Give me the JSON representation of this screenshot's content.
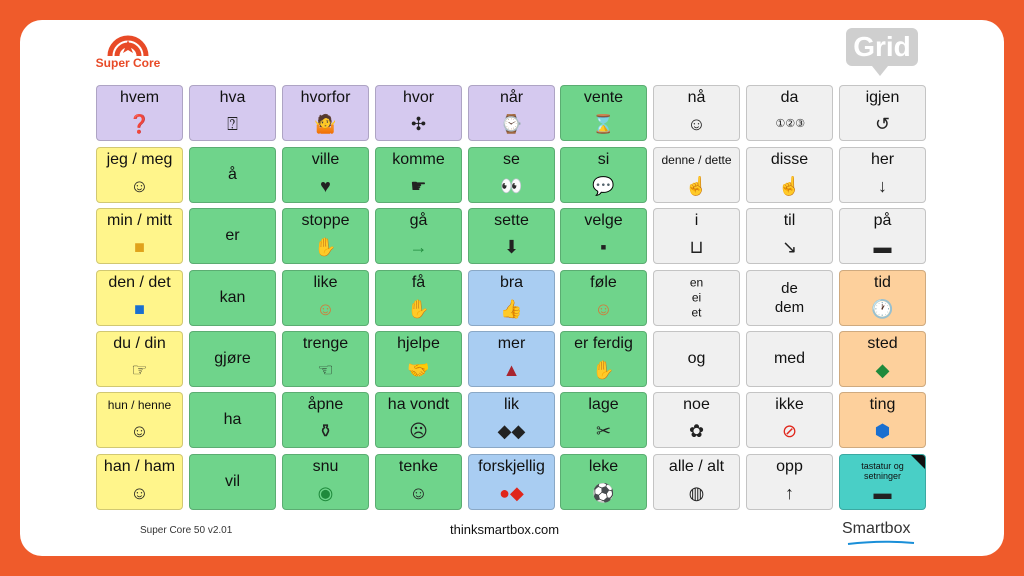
{
  "brand": {
    "logo_text": "Super Core",
    "badge": "Grid"
  },
  "footer": {
    "version": "Super Core 50 v2.01",
    "url": "thinksmartbox.com",
    "company": "Smartbox"
  },
  "colors": {
    "frame": "#ef5b2b",
    "purple": "#d5c9ef",
    "green": "#6fd48b",
    "gray": "#f0f0f0",
    "yellow": "#fff58b",
    "blue": "#a9cdf2",
    "orange": "#fdd09c",
    "teal": "#49cfc6"
  },
  "rows": [
    [
      {
        "label": "hvem",
        "color": "purple",
        "icon": "question-face-icon"
      },
      {
        "label": "hva",
        "color": "purple",
        "icon": "question-box-icon"
      },
      {
        "label": "hvorfor",
        "color": "purple",
        "icon": "shrug-question-icon"
      },
      {
        "label": "hvor",
        "color": "purple",
        "icon": "directions-icon"
      },
      {
        "label": "når",
        "color": "purple",
        "icon": "clock-question-icon"
      },
      {
        "label": "vente",
        "color": "green",
        "icon": "waiting-person-icon"
      },
      {
        "label": "nå",
        "color": "gray",
        "icon": "now-person-icon"
      },
      {
        "label": "da",
        "color": "gray",
        "icon": "sequence-icon"
      },
      {
        "label": "igjen",
        "color": "gray",
        "icon": "again-arrows-icon"
      }
    ],
    [
      {
        "label": "jeg / meg",
        "color": "yellow",
        "icon": "me-person-icon"
      },
      {
        "label": "å",
        "color": "green",
        "icon": ""
      },
      {
        "label": "ville",
        "color": "green",
        "icon": "want-icon"
      },
      {
        "label": "komme",
        "color": "green",
        "icon": "come-hand-icon"
      },
      {
        "label": "se",
        "color": "green",
        "icon": "eyes-icon"
      },
      {
        "label": "si",
        "color": "green",
        "icon": "speak-icon"
      },
      {
        "label": "denne / dette",
        "color": "gray",
        "icon": "this-point-icon"
      },
      {
        "label": "disse",
        "color": "gray",
        "icon": "these-point-icon"
      },
      {
        "label": "her",
        "color": "gray",
        "icon": "here-arrow-icon"
      }
    ],
    [
      {
        "label": "min / mitt",
        "color": "yellow",
        "icon": "mine-icon"
      },
      {
        "label": "er",
        "color": "green",
        "icon": ""
      },
      {
        "label": "stoppe",
        "color": "green",
        "icon": "stop-hand-icon"
      },
      {
        "label": "gå",
        "color": "green",
        "icon": "arrow-right-icon"
      },
      {
        "label": "sette",
        "color": "green",
        "icon": "put-icon"
      },
      {
        "label": "velge",
        "color": "green",
        "icon": "choose-icon"
      },
      {
        "label": "i",
        "color": "gray",
        "icon": "in-icon"
      },
      {
        "label": "til",
        "color": "gray",
        "icon": "to-icon"
      },
      {
        "label": "på",
        "color": "gray",
        "icon": "on-icon"
      }
    ],
    [
      {
        "label": "den / det",
        "color": "yellow",
        "icon": "it-square-icon"
      },
      {
        "label": "kan",
        "color": "green",
        "icon": ""
      },
      {
        "label": "like",
        "color": "green",
        "icon": "happy-face-icon"
      },
      {
        "label": "få",
        "color": "green",
        "icon": "get-hands-icon"
      },
      {
        "label": "bra",
        "color": "blue",
        "icon": "thumbs-up-icon"
      },
      {
        "label": "føle",
        "color": "green",
        "icon": "feelings-faces-icon"
      },
      {
        "label": "en\nei\net",
        "color": "gray",
        "icon": ""
      },
      {
        "label": "de\ndem",
        "color": "gray",
        "icon": ""
      },
      {
        "label": "tid",
        "color": "orange",
        "icon": "clock-icon"
      }
    ],
    [
      {
        "label": "du / din",
        "color": "yellow",
        "icon": "you-point-icon"
      },
      {
        "label": "gjøre",
        "color": "green",
        "icon": ""
      },
      {
        "label": "trenge",
        "color": "green",
        "icon": "need-hand-icon"
      },
      {
        "label": "hjelpe",
        "color": "green",
        "icon": "help-hands-icon"
      },
      {
        "label": "mer",
        "color": "blue",
        "icon": "more-pile-icon"
      },
      {
        "label": "er ferdig",
        "color": "green",
        "icon": "finished-hands-icon"
      },
      {
        "label": "og",
        "color": "gray",
        "icon": ""
      },
      {
        "label": "med",
        "color": "gray",
        "icon": ""
      },
      {
        "label": "sted",
        "color": "orange",
        "icon": "map-place-icon"
      }
    ],
    [
      {
        "label": "hun / henne",
        "color": "yellow",
        "icon": "she-icon"
      },
      {
        "label": "ha",
        "color": "green",
        "icon": ""
      },
      {
        "label": "åpne",
        "color": "green",
        "icon": "open-bottle-icon"
      },
      {
        "label": "ha vondt",
        "color": "green",
        "icon": "hurt-icon"
      },
      {
        "label": "lik",
        "color": "blue",
        "icon": "same-diamonds-icon"
      },
      {
        "label": "lage",
        "color": "green",
        "icon": "make-icon"
      },
      {
        "label": "noe",
        "color": "gray",
        "icon": "something-palette-icon"
      },
      {
        "label": "ikke",
        "color": "gray",
        "icon": "not-circle-icon"
      },
      {
        "label": "ting",
        "color": "orange",
        "icon": "thing-blob-icon"
      }
    ],
    [
      {
        "label": "han / ham",
        "color": "yellow",
        "icon": "he-icon"
      },
      {
        "label": "vil",
        "color": "green",
        "icon": ""
      },
      {
        "label": "snu",
        "color": "green",
        "icon": "turn-circle-icon"
      },
      {
        "label": "tenke",
        "color": "green",
        "icon": "think-face-icon"
      },
      {
        "label": "forskjellig",
        "color": "blue",
        "icon": "different-shapes-icon"
      },
      {
        "label": "leke",
        "color": "green",
        "icon": "play-icon"
      },
      {
        "label": "alle / alt",
        "color": "gray",
        "icon": "all-dots-icon"
      },
      {
        "label": "opp",
        "color": "gray",
        "icon": "arrow-up-icon"
      },
      {
        "label": "tastatur og setninger",
        "color": "teal",
        "icon": "keyboard-icon"
      }
    ]
  ]
}
